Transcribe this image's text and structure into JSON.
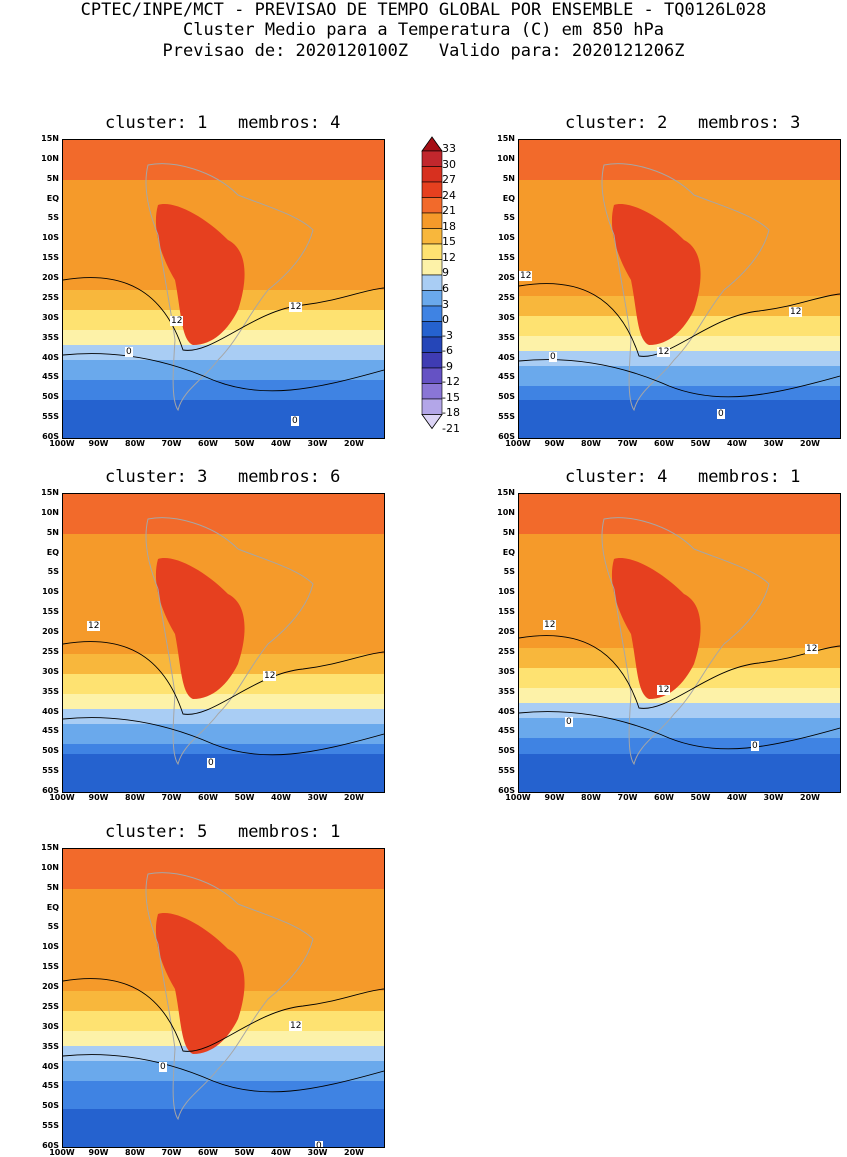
{
  "header": {
    "line1": "CPTEC/INPE/MCT - PREVISAO DE TEMPO GLOBAL POR ENSEMBLE - TQ0126L028",
    "line2": "Cluster Medio para a Temperatura (C) em 850 hPa",
    "line3": "Previsao de: 2020120100Z   Valido para: 2020121206Z"
  },
  "panels": [
    {
      "title": "cluster: 1   membros: 4",
      "contour_labels": [
        "12",
        "12",
        "0",
        "0"
      ]
    },
    {
      "title": "cluster: 2   membros: 3",
      "contour_labels": [
        "12",
        "12",
        "12",
        "0",
        "0"
      ]
    },
    {
      "title": "cluster: 3   membros: 6",
      "contour_labels": [
        "12",
        "12",
        "0"
      ]
    },
    {
      "title": "cluster: 4   membros: 1",
      "contour_labels": [
        "12",
        "12",
        "12",
        "0",
        "0"
      ]
    },
    {
      "title": "cluster: 5   membros: 1",
      "contour_labels": [
        "12",
        "0",
        "0"
      ]
    }
  ],
  "axes": {
    "lat_labels": [
      "15N",
      "10N",
      "5N",
      "EQ",
      "5S",
      "10S",
      "15S",
      "20S",
      "25S",
      "30S",
      "35S",
      "40S",
      "45S",
      "50S",
      "55S",
      "60S"
    ],
    "lon_labels": [
      "100W",
      "90W",
      "80W",
      "70W",
      "60W",
      "50W",
      "40W",
      "30W",
      "20W"
    ]
  },
  "colorbar": {
    "labels": [
      "33",
      "30",
      "27",
      "24",
      "21",
      "18",
      "15",
      "12",
      "9",
      "6",
      "3",
      "0",
      "-3",
      "-6",
      "-9",
      "-12",
      "-15",
      "-18",
      "-21"
    ],
    "colors": [
      "#a50f15",
      "#c1272d",
      "#d7301f",
      "#e6401f",
      "#f26a2b",
      "#f59a2a",
      "#f8b73c",
      "#fee271",
      "#fdf2a8",
      "#a9cdf4",
      "#6aa9ec",
      "#3f83e3",
      "#2562cf",
      "#2546b8",
      "#3f3cb3",
      "#6552c4",
      "#8a76d6",
      "#b3a6e8",
      "#dcd4f6"
    ]
  },
  "colors": {
    "orange_warm": "#f8b73c",
    "red_warm": "#f26a2b",
    "yellow": "#fee271",
    "blue_cold": "#2562cf",
    "land_outline": "#a6a6a6"
  }
}
